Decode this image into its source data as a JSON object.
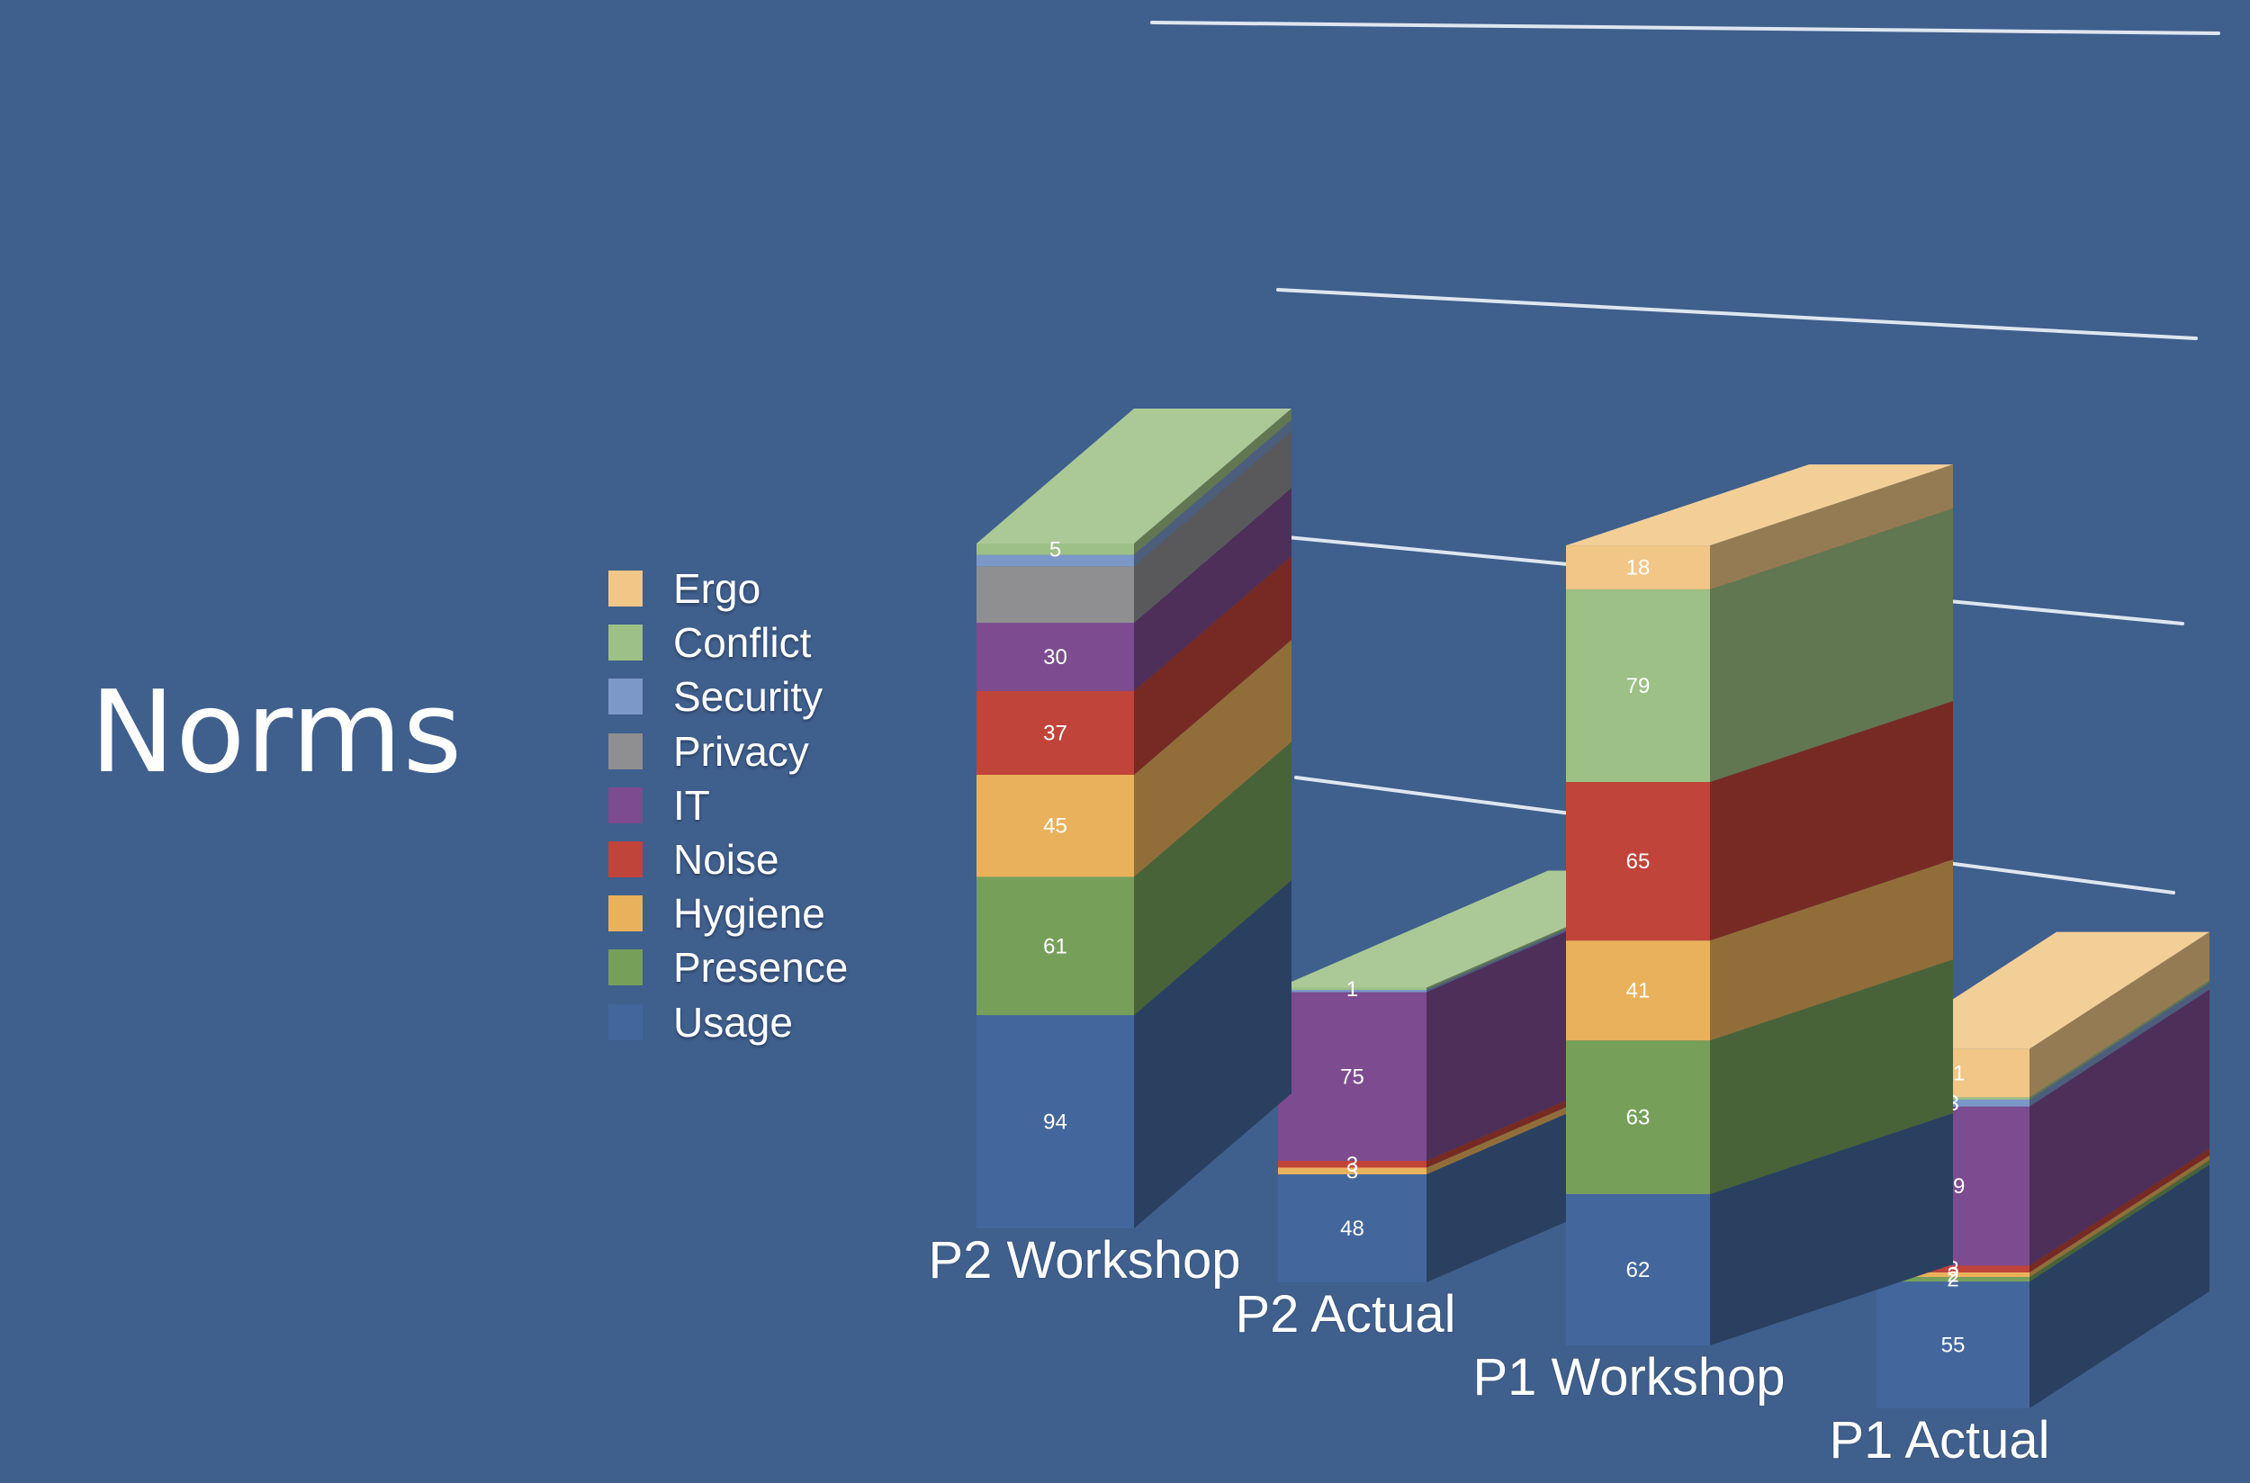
{
  "slide": {
    "title": "Norms"
  },
  "colors": {
    "background": "#3f5f8d",
    "Ergo": "#f1c686",
    "Conflict": "#9cc085",
    "Security": "#7b98c8",
    "Privacy": "#8f8f92",
    "IT": "#7d4b8f",
    "Noise": "#c0443a",
    "Hygiene": "#eab15c",
    "Presence": "#76a05a",
    "Usage": "#43679c"
  },
  "chart_data": {
    "type": "bar",
    "stacked": true,
    "style": "3d",
    "categories": [
      "P2 Workshop",
      "P2 Actual",
      "P1 Workshop",
      "P1 Actual"
    ],
    "legend_position": "left",
    "grid": true,
    "legend": [
      "Ergo",
      "Conflict",
      "Security",
      "Privacy",
      "IT",
      "Noise",
      "Hygiene",
      "Presence",
      "Usage"
    ],
    "series": [
      {
        "name": "Usage",
        "values": [
          94,
          48,
          62,
          55
        ]
      },
      {
        "name": "Presence",
        "values": [
          61,
          0,
          63,
          2
        ]
      },
      {
        "name": "Hygiene",
        "values": [
          45,
          3,
          41,
          2
        ]
      },
      {
        "name": "Noise",
        "values": [
          37,
          3,
          65,
          3
        ]
      },
      {
        "name": "IT",
        "values": [
          30,
          75,
          0,
          69
        ]
      },
      {
        "name": "Privacy",
        "values": [
          25,
          0,
          0,
          0
        ]
      },
      {
        "name": "Security",
        "values": [
          5,
          1,
          0,
          3
        ]
      },
      {
        "name": "Conflict",
        "values": [
          5,
          1,
          79,
          1
        ]
      },
      {
        "name": "Ergo",
        "values": [
          0,
          0,
          18,
          21
        ]
      }
    ],
    "data_labels": [
      [
        94,
        48,
        62,
        55
      ],
      [
        61,
        null,
        63,
        2
      ],
      [
        45,
        3,
        41,
        2
      ],
      [
        37,
        3,
        65,
        3
      ],
      [
        30,
        75,
        null,
        69
      ],
      [
        null,
        null,
        null,
        null
      ],
      [
        null,
        null,
        null,
        3
      ],
      [
        5,
        1,
        79,
        null
      ],
      [
        null,
        null,
        18,
        21
      ]
    ]
  }
}
